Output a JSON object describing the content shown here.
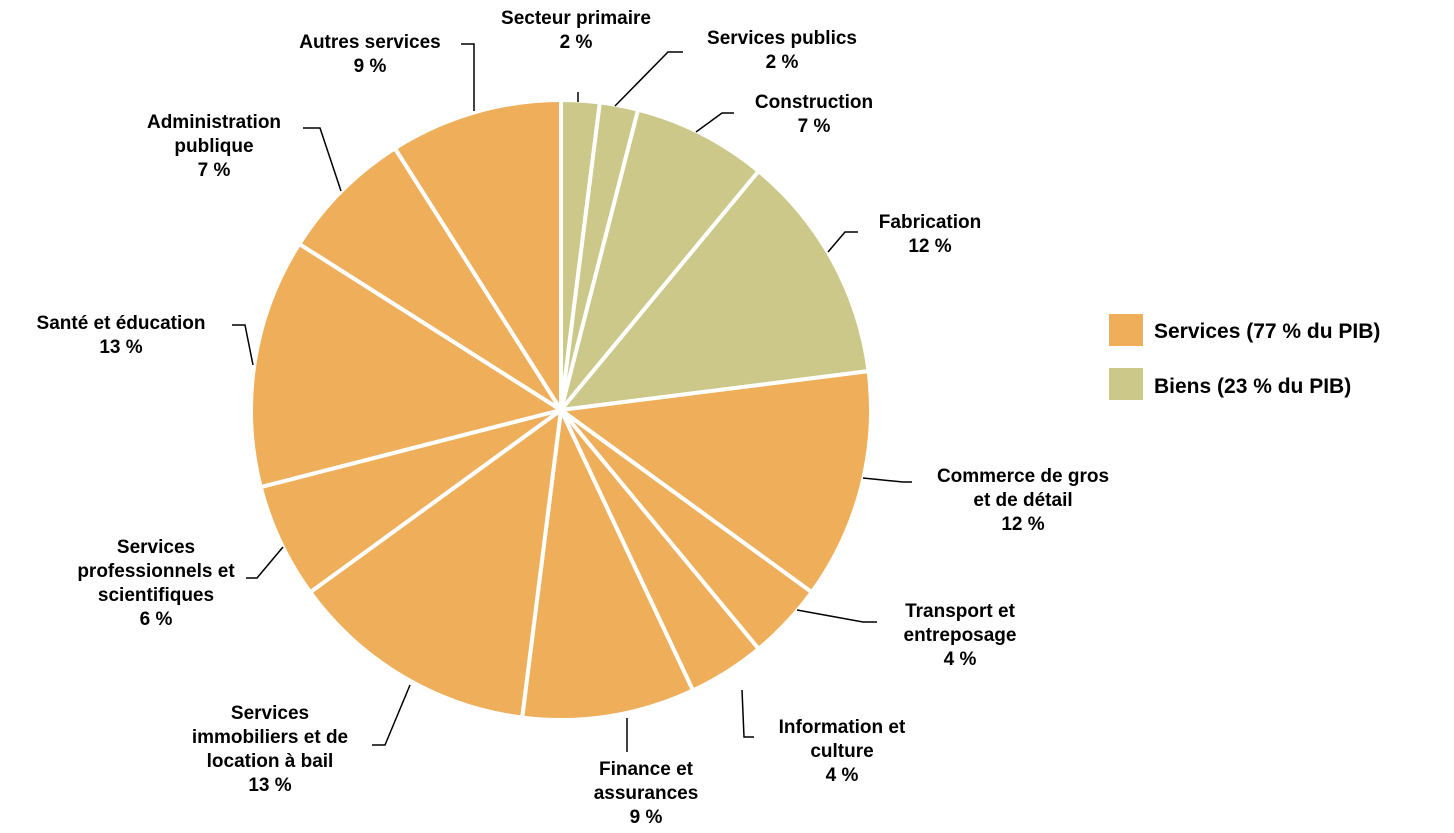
{
  "chart_data": {
    "type": "pie",
    "title": "",
    "start": "top, clockwise",
    "colors": {
      "services": "#EEAE5A",
      "biens": "#CBC889"
    },
    "slices": [
      {
        "label_lines": [
          "Secteur primaire"
        ],
        "value": 2,
        "value_label": "2 %",
        "group": "biens"
      },
      {
        "label_lines": [
          "Services publics"
        ],
        "value": 2,
        "value_label": "2 %",
        "group": "biens"
      },
      {
        "label_lines": [
          "Construction"
        ],
        "value": 7,
        "value_label": "7 %",
        "group": "biens"
      },
      {
        "label_lines": [
          "Fabrication"
        ],
        "value": 12,
        "value_label": "12 %",
        "group": "biens"
      },
      {
        "label_lines": [
          "Commerce de gros",
          "et de détail"
        ],
        "value": 12,
        "value_label": "12 %",
        "group": "services"
      },
      {
        "label_lines": [
          "Transport et",
          "entreposage"
        ],
        "value": 4,
        "value_label": "4 %",
        "group": "services"
      },
      {
        "label_lines": [
          "Information et",
          "culture"
        ],
        "value": 4,
        "value_label": "4 %",
        "group": "services"
      },
      {
        "label_lines": [
          "Finance et",
          "assurances"
        ],
        "value": 9,
        "value_label": "9 %",
        "group": "services"
      },
      {
        "label_lines": [
          "Services",
          "immobiliers et de",
          "location à bail"
        ],
        "value": 13,
        "value_label": "13 %",
        "group": "services"
      },
      {
        "label_lines": [
          "Services",
          "professionnels et",
          "scientifiques"
        ],
        "value": 6,
        "value_label": "6 %",
        "group": "services"
      },
      {
        "label_lines": [
          "Santé et éducation"
        ],
        "value": 13,
        "value_label": "13 %",
        "group": "services"
      },
      {
        "label_lines": [
          "Administration",
          "publique"
        ],
        "value": 7,
        "value_label": "7 %",
        "group": "services"
      },
      {
        "label_lines": [
          "Autres services"
        ],
        "value": 9,
        "value_label": "9 %",
        "group": "services"
      }
    ],
    "legend": {
      "placement": "right",
      "items": [
        {
          "label": "Services (77 % du PIB)",
          "group": "services"
        },
        {
          "label": "Biens (23 % du PIB)",
          "group": "biens"
        }
      ]
    }
  }
}
